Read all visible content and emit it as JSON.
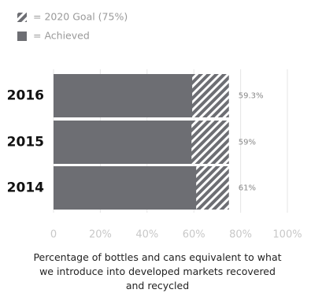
{
  "chart_data": {
    "type": "bar",
    "orientation": "horizontal",
    "xlabel": "Percentage of bottles and cans equivalent to what we introduce into developed markets recovered and recycled",
    "categories": [
      "2016",
      "2015",
      "2014"
    ],
    "series": [
      {
        "name": "= 2020 Goal (75%)",
        "color": "#6d6e73",
        "pattern": "hatch",
        "values": [
          75,
          75,
          75
        ]
      },
      {
        "name": "= Achieved",
        "color": "#6d6e73",
        "values": [
          59.3,
          59,
          61
        ],
        "value_labels": [
          "59.3%",
          "59%",
          "61%"
        ]
      }
    ],
    "xlim": [
      0,
      100
    ],
    "xticks": [
      0,
      {
        "value": 20,
        "label": "20%"
      },
      {
        "value": 40,
        "label": "40%"
      },
      {
        "value": 60,
        "label": "60%"
      },
      {
        "value": 80,
        "label": "80%"
      },
      {
        "value": 100,
        "label": "100%"
      }
    ],
    "grid": true,
    "legend": "top-left"
  }
}
